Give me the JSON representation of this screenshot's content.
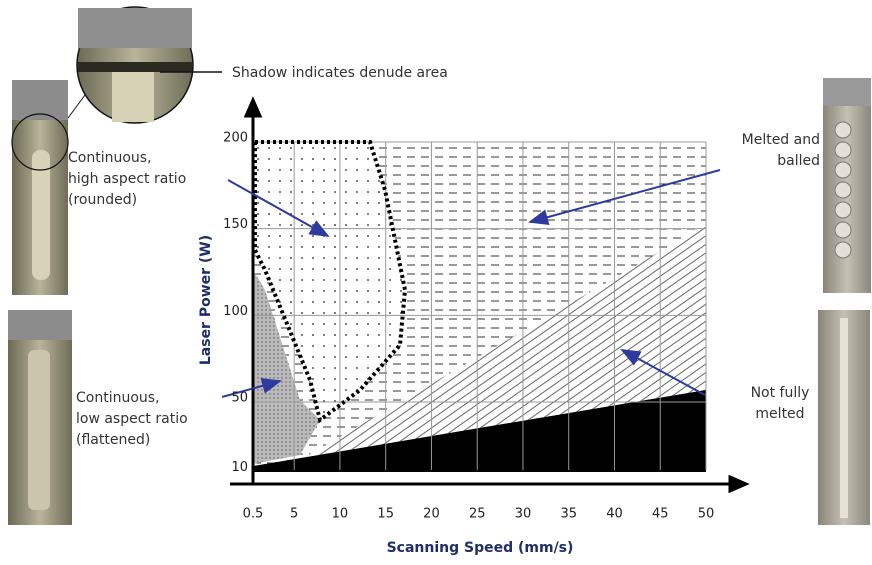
{
  "chart_data": {
    "type": "process-map",
    "x_label": "Scanning Speed (mm/s)",
    "y_label": "Laser Power (W)",
    "xlim": [
      0.5,
      50
    ],
    "ylim": [
      5,
      200
    ],
    "xticks": [
      0.5,
      5,
      10,
      15,
      20,
      25,
      30,
      35,
      40,
      45,
      50
    ],
    "yticks": [
      10,
      50,
      100,
      150,
      200
    ],
    "grid": true,
    "annotations": [
      {
        "lines": [
          "Shadow indicates denude area"
        ]
      },
      {
        "lines": [
          "Continuous,",
          "high aspect ratio",
          "(rounded)"
        ]
      },
      {
        "lines": [
          "Melted and",
          "balled"
        ]
      },
      {
        "lines": [
          "Continuous,",
          "low aspect ratio",
          "(flattened)"
        ]
      },
      {
        "lines": [
          "Not fully",
          "melted"
        ]
      }
    ]
  }
}
